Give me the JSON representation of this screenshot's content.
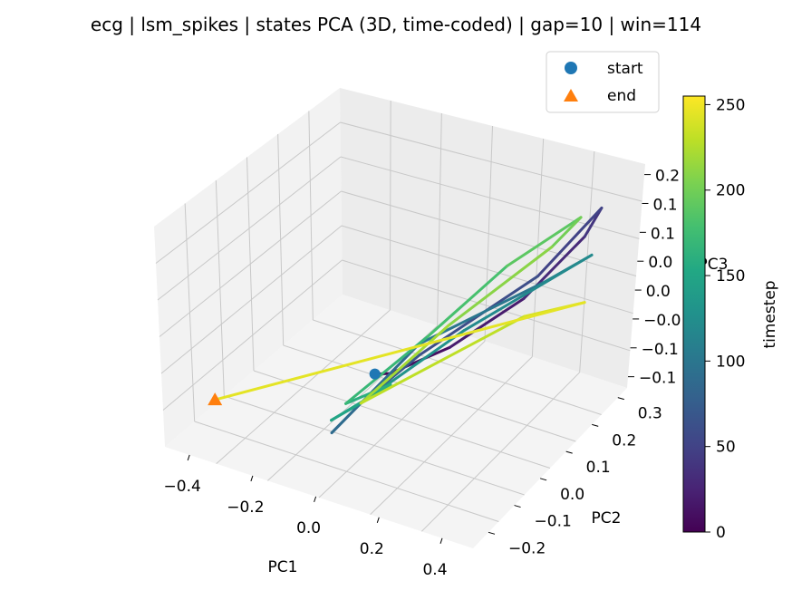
{
  "chart_data": {
    "type": "line",
    "title": "ecg | lsm_spikes | states PCA (3D, time-coded) | gap=10 | win=114",
    "xlabel": "PC1",
    "ylabel": "PC2",
    "zlabel": "PC3",
    "xlim": [
      -0.5,
      0.5
    ],
    "ylim": [
      -0.25,
      0.35
    ],
    "zlim": [
      -0.15,
      0.25
    ],
    "x_ticks": [
      "−0.4",
      "−0.2",
      "0.0",
      "0.2",
      "0.4"
    ],
    "y_ticks": [
      "−0.2",
      "−0.1",
      "0.0",
      "0.1",
      "0.2",
      "0.3"
    ],
    "z_ticks": [
      "−0.1",
      "−0.1",
      "−0.0",
      "0.0",
      "0.0",
      "0.1",
      "0.1",
      "0.2"
    ],
    "grid": true,
    "legend": {
      "position": "top-right",
      "entries": [
        {
          "label": "start",
          "marker": "circle",
          "color": "#1f77b4"
        },
        {
          "label": "end",
          "marker": "triangle",
          "color": "#ff7f0e"
        }
      ]
    },
    "colorbar": {
      "label": "timestep",
      "range": [
        0,
        255
      ],
      "ticks": [
        "0",
        "50",
        "100",
        "150",
        "200",
        "250"
      ],
      "colormap": "viridis"
    },
    "trajectory": [
      {
        "t": 0,
        "pc1": -0.05,
        "pc2": 0.0,
        "pc3": -0.05
      },
      {
        "t": 10,
        "pc1": 0.0,
        "pc2": 0.0,
        "pc3": -0.04
      },
      {
        "t": 20,
        "pc1": 0.1,
        "pc2": 0.1,
        "pc3": -0.02
      },
      {
        "t": 30,
        "pc1": 0.25,
        "pc2": 0.2,
        "pc3": 0.05
      },
      {
        "t": 40,
        "pc1": 0.38,
        "pc2": 0.28,
        "pc3": 0.15
      },
      {
        "t": 50,
        "pc1": 0.42,
        "pc2": 0.3,
        "pc3": 0.2
      },
      {
        "t": 60,
        "pc1": 0.3,
        "pc2": 0.2,
        "pc3": 0.1
      },
      {
        "t": 70,
        "pc1": 0.05,
        "pc2": 0.05,
        "pc3": -0.02
      },
      {
        "t": 80,
        "pc1": -0.05,
        "pc2": -0.05,
        "pc3": -0.08
      },
      {
        "t": 90,
        "pc1": -0.1,
        "pc2": -0.1,
        "pc3": -0.12
      },
      {
        "t": 100,
        "pc1": 0.05,
        "pc2": 0.05,
        "pc3": 0.0
      },
      {
        "t": 110,
        "pc1": 0.3,
        "pc2": 0.22,
        "pc3": 0.08
      },
      {
        "t": 120,
        "pc1": 0.4,
        "pc2": 0.28,
        "pc3": 0.12
      },
      {
        "t": 130,
        "pc1": 0.15,
        "pc2": 0.1,
        "pc3": 0.02
      },
      {
        "t": 140,
        "pc1": -0.05,
        "pc2": -0.05,
        "pc3": -0.08
      },
      {
        "t": 150,
        "pc1": -0.12,
        "pc2": -0.08,
        "pc3": -0.11
      },
      {
        "t": 160,
        "pc1": 0.0,
        "pc2": 0.0,
        "pc3": -0.06
      },
      {
        "t": 170,
        "pc1": -0.1,
        "pc2": -0.05,
        "pc3": -0.09
      },
      {
        "t": 180,
        "pc1": 0.05,
        "pc2": 0.08,
        "pc3": 0.0
      },
      {
        "t": 190,
        "pc1": 0.2,
        "pc2": 0.2,
        "pc3": 0.1
      },
      {
        "t": 200,
        "pc1": 0.35,
        "pc2": 0.3,
        "pc3": 0.17
      },
      {
        "t": 210,
        "pc1": 0.3,
        "pc2": 0.25,
        "pc3": 0.13
      },
      {
        "t": 220,
        "pc1": 0.1,
        "pc2": 0.1,
        "pc3": 0.02
      },
      {
        "t": 230,
        "pc1": -0.05,
        "pc2": -0.05,
        "pc3": -0.08
      },
      {
        "t": 240,
        "pc1": 0.3,
        "pc2": 0.15,
        "pc3": 0.05
      },
      {
        "t": 245,
        "pc1": 0.45,
        "pc2": 0.2,
        "pc3": 0.08
      },
      {
        "t": 255,
        "pc1": -0.48,
        "pc2": -0.1,
        "pc3": -0.13
      }
    ]
  }
}
